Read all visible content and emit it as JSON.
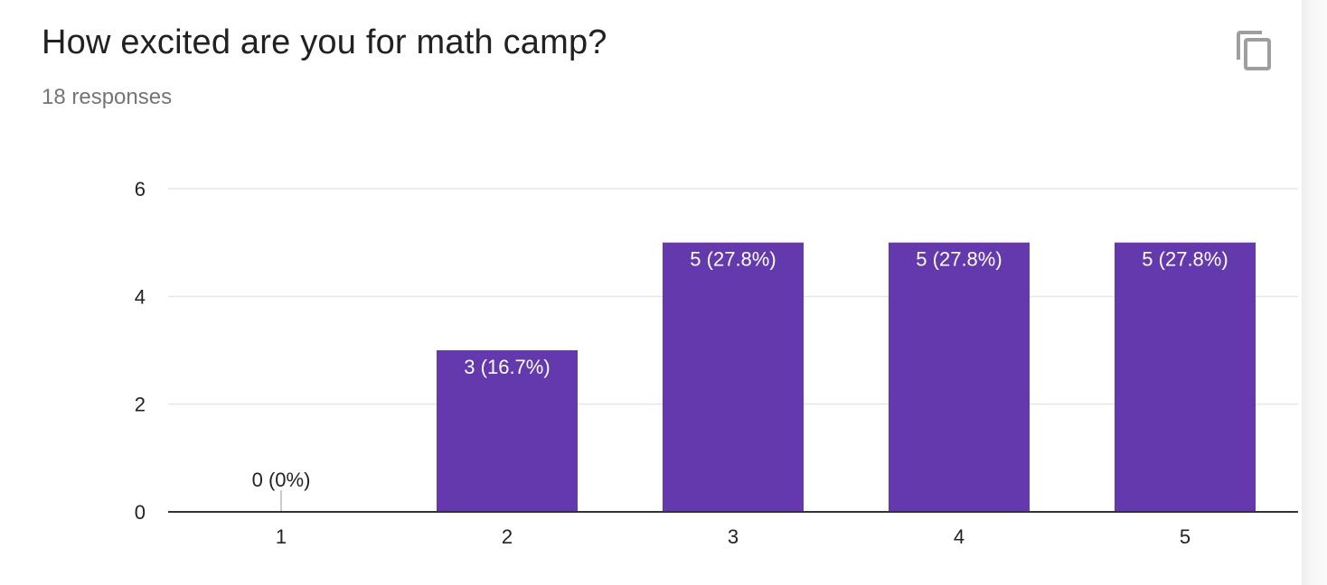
{
  "header": {
    "title": "How excited are you for math camp?",
    "responses": "18 responses",
    "copy_icon": "copy-icon"
  },
  "colors": {
    "bar": "#6439AE",
    "grid": "#e6e6e6",
    "axis": "#333333",
    "tick_text": "#222222",
    "bar_label": "#ffffff",
    "zero_label": "#222222"
  },
  "chart_data": {
    "type": "bar",
    "categories": [
      "1",
      "2",
      "3",
      "4",
      "5"
    ],
    "values": [
      0,
      3,
      5,
      5,
      5
    ],
    "data_labels": [
      "0 (0%)",
      "3 (16.7%)",
      "5 (27.8%)",
      "5 (27.8%)",
      "5 (27.8%)"
    ],
    "yticks": [
      0,
      2,
      4,
      6
    ],
    "ylim": [
      0,
      6
    ],
    "grid": true,
    "legend": "none"
  }
}
